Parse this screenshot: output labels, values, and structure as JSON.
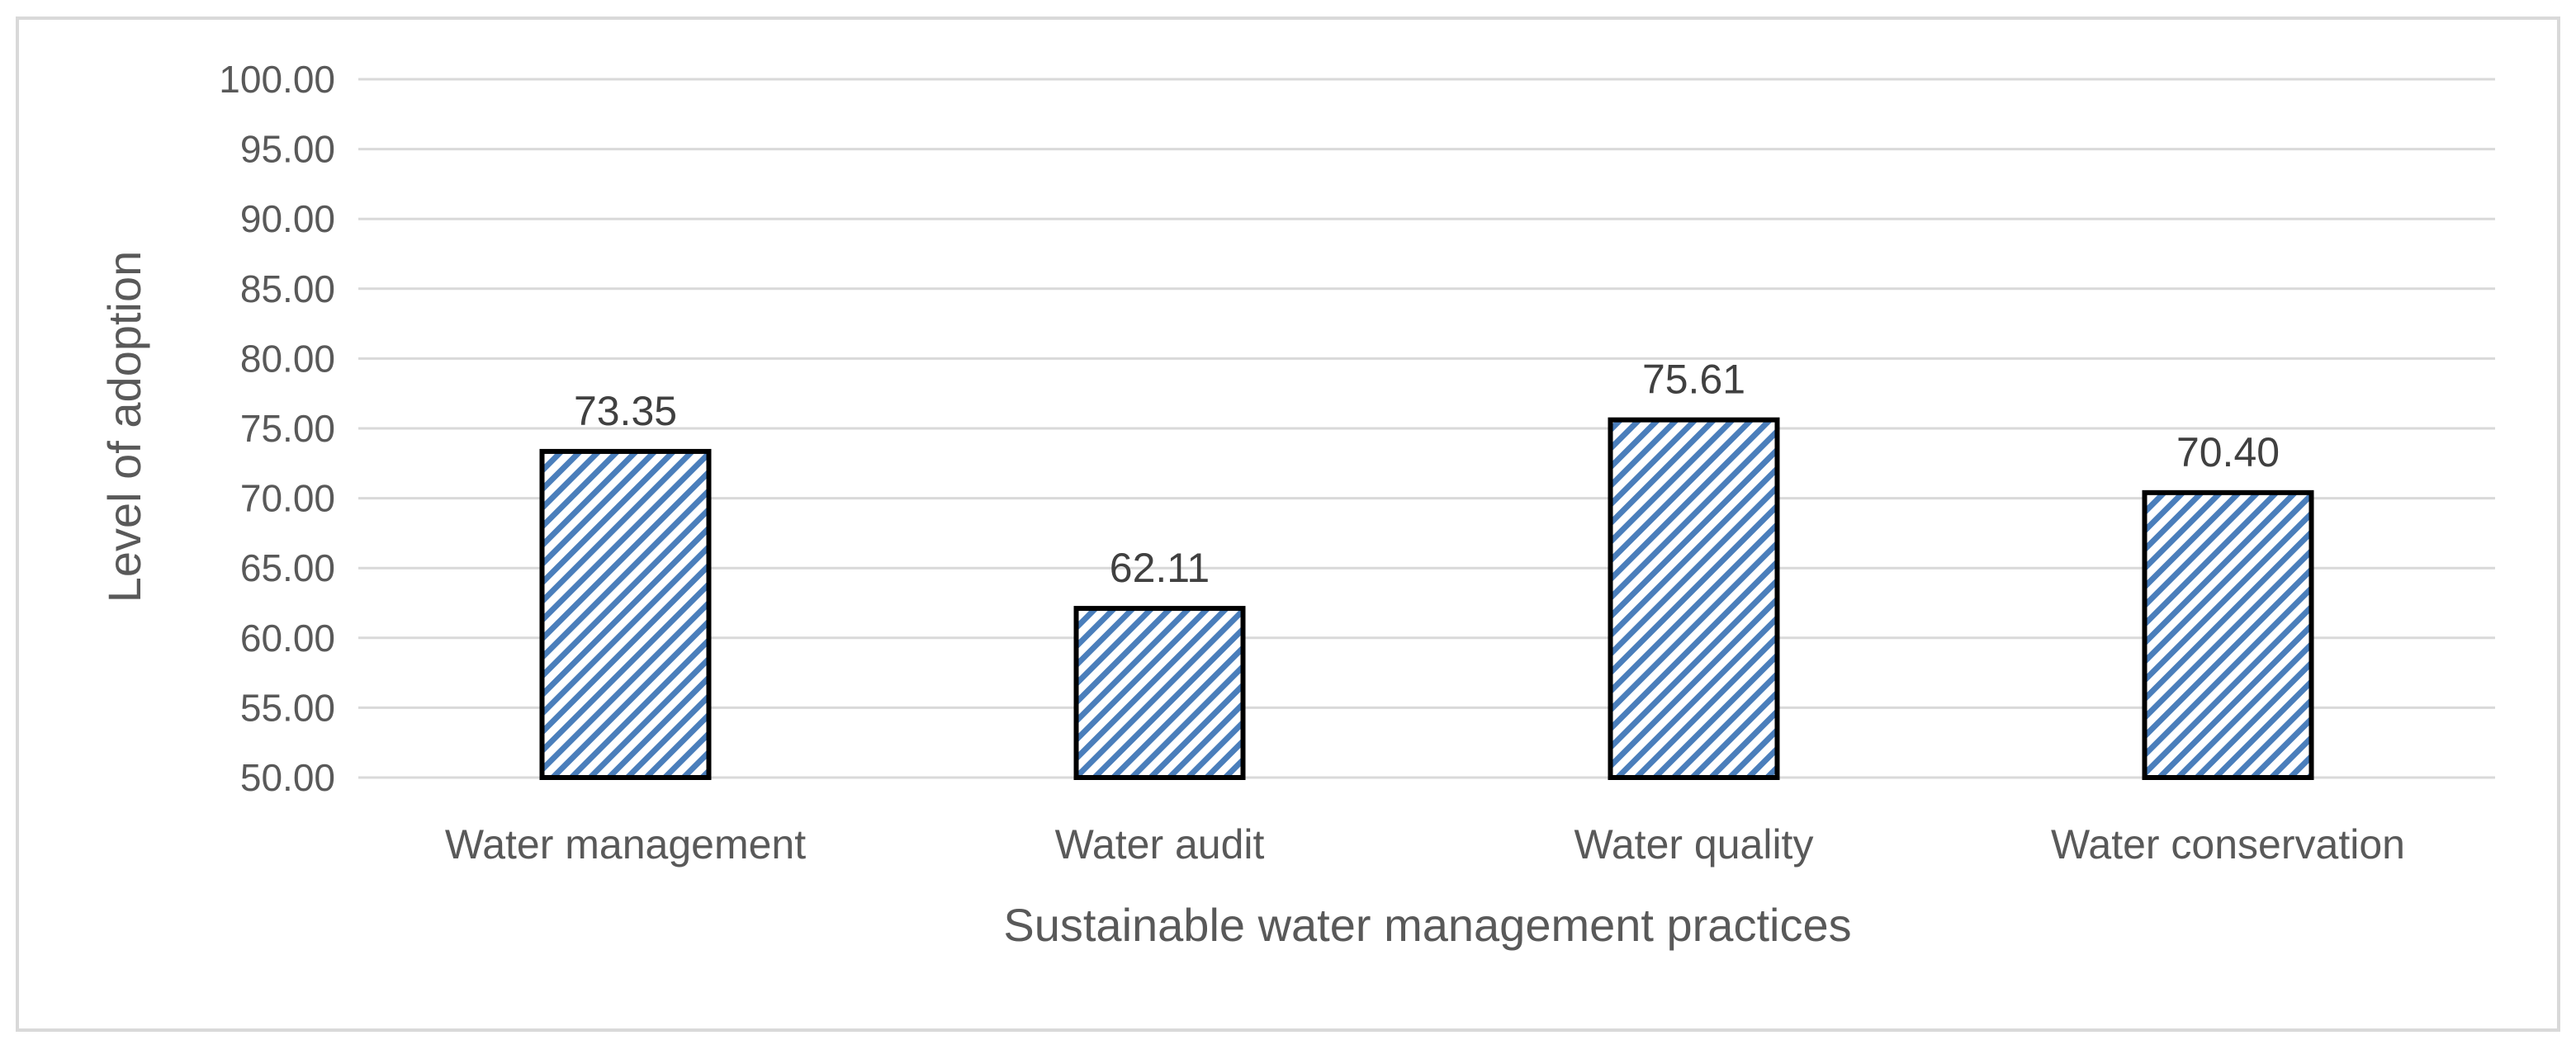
{
  "chart_data": {
    "type": "bar",
    "title": "",
    "xlabel": "Sustainable water management practices",
    "ylabel": "Level of adoption",
    "categories": [
      "Water management",
      "Water audit",
      "Water quality",
      "Water conservation"
    ],
    "values": [
      73.35,
      62.11,
      75.61,
      70.4
    ],
    "data_labels": [
      "73.35",
      "62.11",
      "75.61",
      "70.40"
    ],
    "ylim": [
      50,
      100
    ],
    "yticks": [
      "50.00",
      "55.00",
      "60.00",
      "65.00",
      "70.00",
      "75.00",
      "80.00",
      "85.00",
      "90.00",
      "95.00",
      "100.00"
    ],
    "grid": true,
    "legend": "none"
  },
  "colors": {
    "bar_hatch": "#4a7ebb",
    "bar_outline": "#000000",
    "gridline": "#d9d9d9",
    "frame": "#d9d9d9",
    "text": "#595959"
  }
}
